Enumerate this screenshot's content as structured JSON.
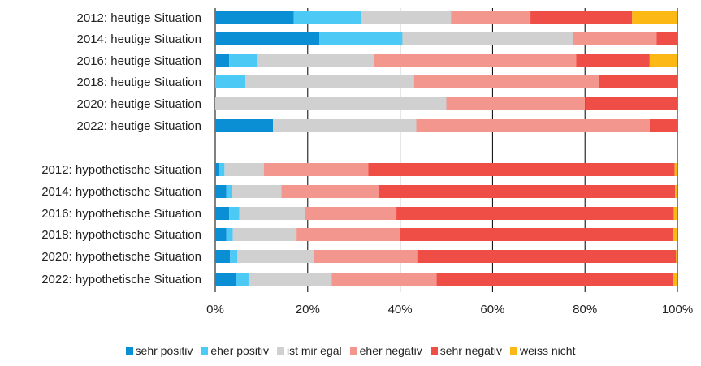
{
  "chart_data": {
    "type": "bar",
    "orientation": "horizontal",
    "stacked": "percent",
    "title": "",
    "xlabel": "",
    "ylabel": "",
    "xlim": [
      0,
      100
    ],
    "x_ticks": [
      "0%",
      "20%",
      "40%",
      "60%",
      "80%",
      "100%"
    ],
    "grid": "vertical",
    "legend_position": "bottom",
    "groups": [
      [
        "2012: heutige Situation",
        "2014: heutige Situation",
        "2016: heutige Situation",
        "2018: heutige Situation",
        "2020: heutige Situation",
        "2022: heutige Situation"
      ],
      [
        "2012: hypothetische Situation",
        "2014: hypothetische Situation",
        "2016: hypothetische Situation",
        "2018: hypothetische Situation",
        "2020: hypothetische Situation",
        "2022: hypothetische Situation"
      ]
    ],
    "categories": [
      "2012: heutige Situation",
      "2014: heutige Situation",
      "2016: heutige Situation",
      "2018: heutige Situation",
      "2020: heutige Situation",
      "2022: heutige Situation",
      "2012: hypothetische Situation",
      "2014: hypothetische Situation",
      "2016: hypothetische Situation",
      "2018: hypothetische Situation",
      "2020: hypothetische Situation",
      "2022: hypothetische Situation"
    ],
    "series": [
      {
        "name": "sehr positiv",
        "color": "#0a8fd4",
        "values": [
          17,
          22.5,
          3,
          0,
          0,
          12.5,
          0.7,
          2.4,
          3,
          2.4,
          3.2,
          4.5
        ]
      },
      {
        "name": "eher positiv",
        "color": "#4cc9f5",
        "values": [
          14.5,
          18,
          6.2,
          6.5,
          0,
          0,
          1.3,
          1.2,
          2.2,
          1.4,
          1.6,
          2.7
        ]
      },
      {
        "name": "ist mir egal",
        "color": "#d0d0d0",
        "values": [
          19.5,
          37,
          25.2,
          36.5,
          50,
          31,
          8.5,
          10.7,
          14.2,
          13.8,
          16.6,
          18
        ]
      },
      {
        "name": "eher negativ",
        "color": "#f2968e",
        "values": [
          17.2,
          18,
          43.7,
          40,
          30,
          50.5,
          22.6,
          21,
          19.8,
          22.3,
          22.3,
          22.7
        ]
      },
      {
        "name": "sehr negativ",
        "color": "#ef4e46",
        "values": [
          22,
          4.5,
          15.9,
          17,
          20,
          6,
          66.3,
          64.2,
          60,
          59.2,
          56,
          51.2
        ]
      },
      {
        "name": "weiss nicht",
        "color": "#fcb814",
        "values": [
          9.8,
          0,
          6,
          0,
          0,
          0,
          0.6,
          0.5,
          0.8,
          0.9,
          0.3,
          0.9
        ]
      }
    ]
  }
}
